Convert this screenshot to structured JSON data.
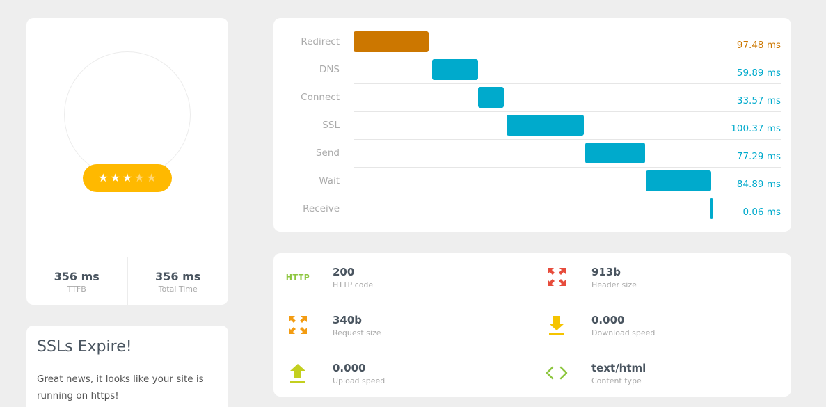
{
  "score": {
    "rating_stars": 3,
    "max_stars": 5,
    "stats": [
      {
        "value": "356 ms",
        "label": "TTFB"
      },
      {
        "value": "356 ms",
        "label": "Total Time"
      }
    ]
  },
  "ssl": {
    "title": "SSLs Expire!",
    "text": "Great news, it looks like your site is running on https!"
  },
  "timing": {
    "total_ms": 356,
    "colors": {
      "redirect": "#cc7700",
      "default": "#00aacc"
    },
    "rows": [
      {
        "label": "Redirect",
        "start_ms": 0,
        "duration_ms": 97.48,
        "value": "97.48 ms"
      },
      {
        "label": "DNS",
        "start_ms": 102.5,
        "duration_ms": 59.89,
        "value": "59.89 ms"
      },
      {
        "label": "Connect",
        "start_ms": 162.4,
        "duration_ms": 33.57,
        "value": "33.57 ms"
      },
      {
        "label": "SSL",
        "start_ms": 199.6,
        "duration_ms": 100.37,
        "value": "100.37 ms"
      },
      {
        "label": "Send",
        "start_ms": 302.4,
        "duration_ms": 77.29,
        "value": "77.29 ms"
      },
      {
        "label": "Wait",
        "start_ms": 381.2,
        "duration_ms": 84.89,
        "value": "84.89 ms"
      },
      {
        "label": "Receive",
        "start_ms": 464.1,
        "duration_ms": 0.06,
        "value": "0.06 ms"
      }
    ]
  },
  "info": {
    "http_icon_text": "HTTP",
    "items": [
      {
        "value": "200",
        "label": "HTTP code",
        "icon": "http-icon"
      },
      {
        "value": "913b",
        "label": "Header size",
        "icon": "expand-arrows-icon"
      },
      {
        "value": "340b",
        "label": "Request size",
        "icon": "expand-arrows-icon"
      },
      {
        "value": "0.000",
        "label": "Download speed",
        "icon": "download-icon"
      },
      {
        "value": "0.000",
        "label": "Upload speed",
        "icon": "upload-icon"
      },
      {
        "value": "text/html",
        "label": "Content type",
        "icon": "code-icon"
      }
    ]
  }
}
